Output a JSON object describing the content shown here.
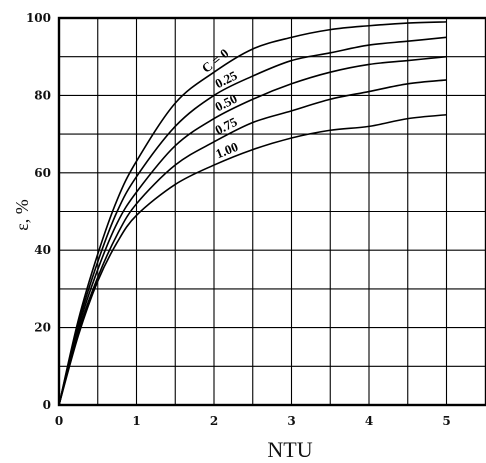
{
  "chart_data": {
    "type": "line",
    "title": "",
    "xlabel": "NTU",
    "ylabel": "ε, %",
    "xlim": [
      0,
      5.5
    ],
    "ylim": [
      0,
      100
    ],
    "x_ticks": [
      0,
      1,
      2,
      3,
      4,
      5
    ],
    "y_ticks": [
      0,
      20,
      40,
      60,
      80,
      100
    ],
    "grid": true,
    "legend": "none",
    "x": [
      0,
      0.25,
      0.5,
      0.75,
      1,
      1.5,
      2,
      2.5,
      3,
      3.5,
      4,
      4.5,
      5
    ],
    "series": [
      {
        "name": "C = 0",
        "values": [
          0,
          22,
          39,
          53,
          63,
          78,
          86,
          92,
          95,
          97,
          98,
          98.7,
          99
        ]
      },
      {
        "name": "0.25",
        "values": [
          0,
          21,
          37,
          50,
          59,
          72,
          80,
          85,
          89,
          91,
          93,
          94,
          95
        ]
      },
      {
        "name": "0.50",
        "values": [
          0,
          20,
          35,
          47,
          55,
          67,
          74,
          79,
          83,
          86,
          88,
          89,
          90
        ]
      },
      {
        "name": "0.75",
        "values": [
          0,
          19,
          33,
          44,
          52,
          62,
          68,
          73,
          76,
          79,
          81,
          83,
          84
        ]
      },
      {
        "name": "1.00",
        "values": [
          0,
          18,
          32,
          42,
          49,
          57,
          62,
          66,
          69,
          71,
          72,
          74,
          75
        ]
      }
    ]
  }
}
